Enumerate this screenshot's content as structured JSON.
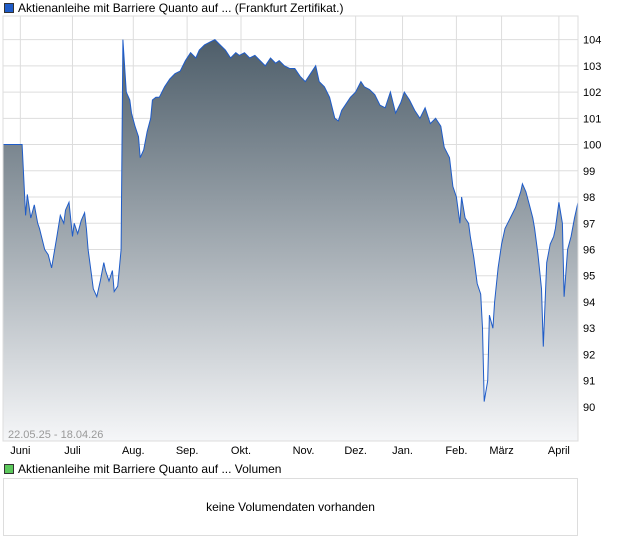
{
  "legend_price": "Aktienanleihe mit Barriere Quanto auf ... (Frankfurt Zertifikat.)",
  "legend_volume": "Aktienanleihe mit Barriere Quanto auf ... Volumen",
  "volume_message": "keine Volumendaten vorhanden",
  "colors": {
    "line": "#1f5cc8",
    "fill_top": "#4e5e6a",
    "fill_bottom": "#f5f6f8",
    "volume_swatch": "#5cc85c",
    "grid": "#dddddd"
  },
  "chart_data": {
    "type": "area",
    "date_range": "22.05.25 - 18.04.26",
    "xlabel": "",
    "ylabel": "",
    "xlim": [
      0,
      331
    ],
    "ylim": [
      88.7,
      104.9
    ],
    "yticks": [
      90,
      91,
      92,
      93,
      94,
      95,
      96,
      97,
      98,
      99,
      100,
      101,
      102,
      103,
      104
    ],
    "months": [
      {
        "label": "Juni",
        "day": 10
      },
      {
        "label": "Juli",
        "day": 40
      },
      {
        "label": "Aug.",
        "day": 75
      },
      {
        "label": "Sep.",
        "day": 106
      },
      {
        "label": "Okt.",
        "day": 137
      },
      {
        "label": "Nov.",
        "day": 173
      },
      {
        "label": "Dez.",
        "day": 203
      },
      {
        "label": "Jan.",
        "day": 230
      },
      {
        "label": "Feb.",
        "day": 261
      },
      {
        "label": "März",
        "day": 287
      },
      {
        "label": "April",
        "day": 320
      }
    ],
    "series": [
      {
        "name": "Aktienanleihe mit Barriere Quanto auf ... (Frankfurt Zertifikat.)",
        "x_unit": "days since 22.05.25",
        "points": [
          [
            0,
            100
          ],
          [
            11,
            100
          ],
          [
            13,
            97.3
          ],
          [
            14,
            98.1
          ],
          [
            16,
            97.2
          ],
          [
            18,
            97.7
          ],
          [
            20,
            97.0
          ],
          [
            21,
            96.8
          ],
          [
            24,
            96.0
          ],
          [
            26,
            95.8
          ],
          [
            28,
            95.3
          ],
          [
            31,
            96.5
          ],
          [
            33,
            97.3
          ],
          [
            35,
            97.0
          ],
          [
            36,
            97.5
          ],
          [
            38,
            97.8
          ],
          [
            40,
            96.5
          ],
          [
            41,
            97.0
          ],
          [
            43,
            96.6
          ],
          [
            45,
            97.1
          ],
          [
            47,
            97.4
          ],
          [
            48,
            96.8
          ],
          [
            49,
            96.0
          ],
          [
            51,
            95.0
          ],
          [
            52,
            94.5
          ],
          [
            54,
            94.2
          ],
          [
            56,
            94.8
          ],
          [
            58,
            95.5
          ],
          [
            59,
            95.2
          ],
          [
            61,
            94.8
          ],
          [
            63,
            95.2
          ],
          [
            64,
            94.4
          ],
          [
            66,
            94.6
          ],
          [
            68,
            96.0
          ],
          [
            69,
            104.0
          ],
          [
            71,
            102.0
          ],
          [
            73,
            101.7
          ],
          [
            74,
            101.2
          ],
          [
            76,
            100.7
          ],
          [
            78,
            100.3
          ],
          [
            79,
            99.5
          ],
          [
            81,
            99.8
          ],
          [
            83,
            100.5
          ],
          [
            85,
            101.0
          ],
          [
            86,
            101.7
          ],
          [
            88,
            101.8
          ],
          [
            90,
            101.8
          ],
          [
            93,
            102.2
          ],
          [
            96,
            102.5
          ],
          [
            99,
            102.7
          ],
          [
            102,
            102.8
          ],
          [
            105,
            103.2
          ],
          [
            108,
            103.5
          ],
          [
            111,
            103.3
          ],
          [
            113,
            103.6
          ],
          [
            116,
            103.8
          ],
          [
            119,
            103.9
          ],
          [
            122,
            104.0
          ],
          [
            125,
            103.8
          ],
          [
            128,
            103.6
          ],
          [
            131,
            103.3
          ],
          [
            134,
            103.5
          ],
          [
            136,
            103.4
          ],
          [
            139,
            103.5
          ],
          [
            142,
            103.3
          ],
          [
            145,
            103.4
          ],
          [
            148,
            103.2
          ],
          [
            151,
            103.0
          ],
          [
            154,
            103.3
          ],
          [
            157,
            103.1
          ],
          [
            159,
            103.2
          ],
          [
            162,
            103.0
          ],
          [
            165,
            102.9
          ],
          [
            168,
            102.9
          ],
          [
            171,
            102.6
          ],
          [
            174,
            102.4
          ],
          [
            177,
            102.7
          ],
          [
            180,
            103.0
          ],
          [
            182,
            102.4
          ],
          [
            185,
            102.2
          ],
          [
            188,
            101.8
          ],
          [
            191,
            101.0
          ],
          [
            193,
            100.9
          ],
          [
            195,
            101.3
          ],
          [
            197,
            101.5
          ],
          [
            200,
            101.8
          ],
          [
            203,
            102.0
          ],
          [
            206,
            102.4
          ],
          [
            208,
            102.2
          ],
          [
            211,
            102.1
          ],
          [
            214,
            101.9
          ],
          [
            217,
            101.5
          ],
          [
            220,
            101.4
          ],
          [
            223,
            102.0
          ],
          [
            226,
            101.2
          ],
          [
            229,
            101.6
          ],
          [
            231,
            102.0
          ],
          [
            234,
            101.7
          ],
          [
            237,
            101.3
          ],
          [
            240,
            101.0
          ],
          [
            243,
            101.4
          ],
          [
            246,
            100.8
          ],
          [
            249,
            101.0
          ],
          [
            252,
            100.7
          ],
          [
            254,
            99.9
          ],
          [
            257,
            99.5
          ],
          [
            259,
            98.4
          ],
          [
            261,
            98.0
          ],
          [
            263,
            97.0
          ],
          [
            264,
            98.0
          ],
          [
            266,
            97.2
          ],
          [
            268,
            97.0
          ],
          [
            269,
            96.5
          ],
          [
            271,
            95.7
          ],
          [
            273,
            94.7
          ],
          [
            275,
            94.3
          ],
          [
            276,
            93.0
          ],
          [
            277,
            90.2
          ],
          [
            279,
            91.0
          ],
          [
            280,
            93.5
          ],
          [
            282,
            93.0
          ],
          [
            283,
            94.0
          ],
          [
            285,
            95.3
          ],
          [
            287,
            96.2
          ],
          [
            289,
            96.8
          ],
          [
            292,
            97.2
          ],
          [
            295,
            97.6
          ],
          [
            298,
            98.2
          ],
          [
            299,
            98.5
          ],
          [
            301,
            98.2
          ],
          [
            303,
            97.7
          ],
          [
            305,
            97.2
          ],
          [
            306,
            96.8
          ],
          [
            308,
            95.8
          ],
          [
            310,
            94.5
          ],
          [
            311,
            92.3
          ],
          [
            313,
            95.5
          ],
          [
            315,
            96.2
          ],
          [
            317,
            96.5
          ],
          [
            318,
            96.8
          ],
          [
            320,
            97.8
          ],
          [
            322,
            97.0
          ],
          [
            323,
            94.2
          ],
          [
            325,
            96.0
          ],
          [
            327,
            96.5
          ],
          [
            329,
            97.2
          ],
          [
            331,
            97.8
          ]
        ]
      }
    ]
  }
}
